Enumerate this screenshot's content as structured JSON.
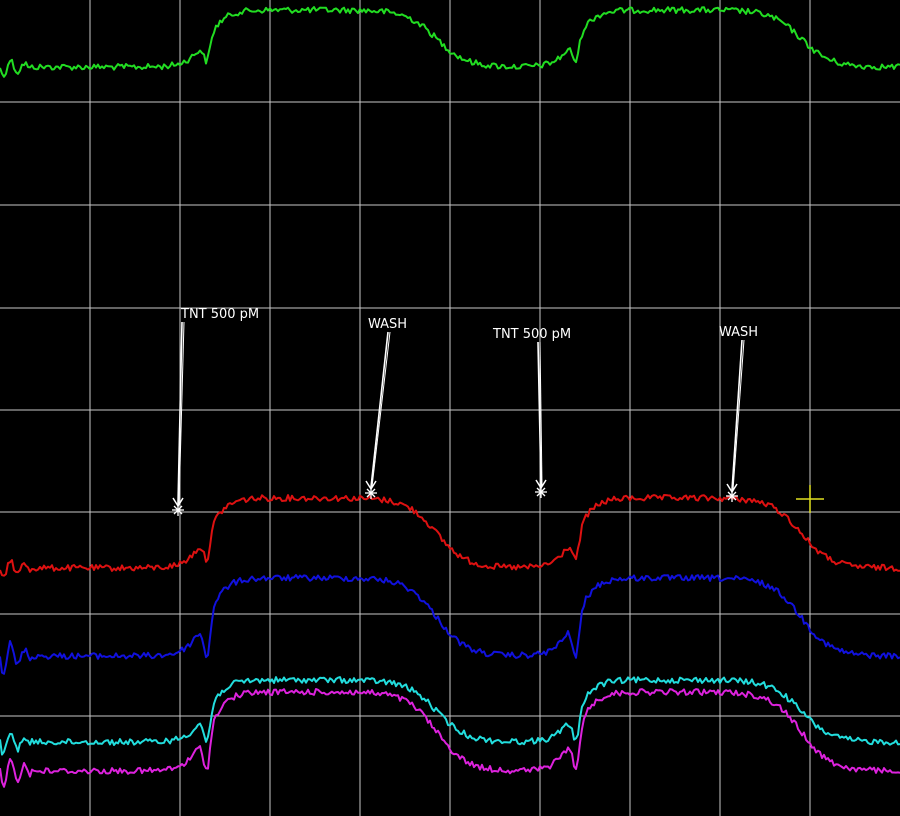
{
  "chart_data": {
    "type": "line",
    "background": "#000000",
    "grid_color": "#c8c8c8",
    "grid": true,
    "x_range": [
      0,
      10
    ],
    "series": [
      {
        "color": "#22dd22",
        "baseline": 2.6,
        "amplitude": 0.55,
        "onsets": [
          2.3,
          6.4
        ],
        "offsets": [
          4.85,
          8.9
        ],
        "noise": 0.025
      },
      {
        "color": "#dd1111",
        "baseline": 7.4,
        "amplitude": 0.7,
        "onsets": [
          2.3,
          6.4
        ],
        "offsets": [
          4.85,
          8.9
        ],
        "noise": 0.02
      },
      {
        "color": "#1111dd",
        "baseline": 8.45,
        "amplitude": 0.8,
        "onsets": [
          2.3,
          6.4
        ],
        "offsets": [
          4.85,
          8.9
        ],
        "noise": 0.025
      },
      {
        "color": "#22dddd",
        "baseline": 9.2,
        "amplitude": 0.6,
        "onsets": [
          2.3,
          6.4
        ],
        "offsets": [
          4.85,
          8.9
        ],
        "noise": 0.025
      },
      {
        "color": "#dd22dd",
        "baseline": 9.5,
        "amplitude": 0.7,
        "onsets": [
          2.3,
          6.4
        ],
        "offsets": [
          4.85,
          8.9
        ],
        "noise": 0.025
      }
    ],
    "annotations": [
      {
        "label": "TNT 500 pM",
        "color": "#ffffff"
      },
      {
        "label": "WASH",
        "color": "#ffffff"
      },
      {
        "label": "TNT 500 pM",
        "color": "#ffffff"
      },
      {
        "label": "WASH",
        "color": "#ffffff"
      }
    ],
    "cursor": {
      "color": "#e0e020"
    }
  }
}
